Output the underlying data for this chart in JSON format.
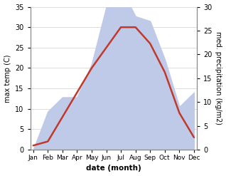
{
  "months": [
    "Jan",
    "Feb",
    "Mar",
    "Apr",
    "May",
    "Jun",
    "Jul",
    "Aug",
    "Sep",
    "Oct",
    "Nov",
    "Dec"
  ],
  "x": [
    0,
    1,
    2,
    3,
    4,
    5,
    6,
    7,
    8,
    9,
    10,
    11
  ],
  "temperature": [
    1,
    2,
    8,
    14,
    20,
    25,
    30,
    30,
    26,
    19,
    9,
    3
  ],
  "precipitation": [
    0,
    8,
    11,
    11,
    18,
    30,
    34,
    28,
    27,
    19,
    9,
    12
  ],
  "temp_color": "#c0392b",
  "precip_fill_color": "#bfc9e8",
  "ylim_temp": [
    0,
    35
  ],
  "ylim_precip": [
    0,
    30
  ],
  "yticks_temp": [
    0,
    5,
    10,
    15,
    20,
    25,
    30,
    35
  ],
  "yticks_precip": [
    0,
    5,
    10,
    15,
    20,
    25,
    30
  ],
  "ylabel_left": "max temp (C)",
  "ylabel_right": "med. precipitation (kg/m2)",
  "xlabel": "date (month)",
  "temp_linewidth": 1.8,
  "bg_color": "#f0f0f0",
  "spine_color": "#999999"
}
